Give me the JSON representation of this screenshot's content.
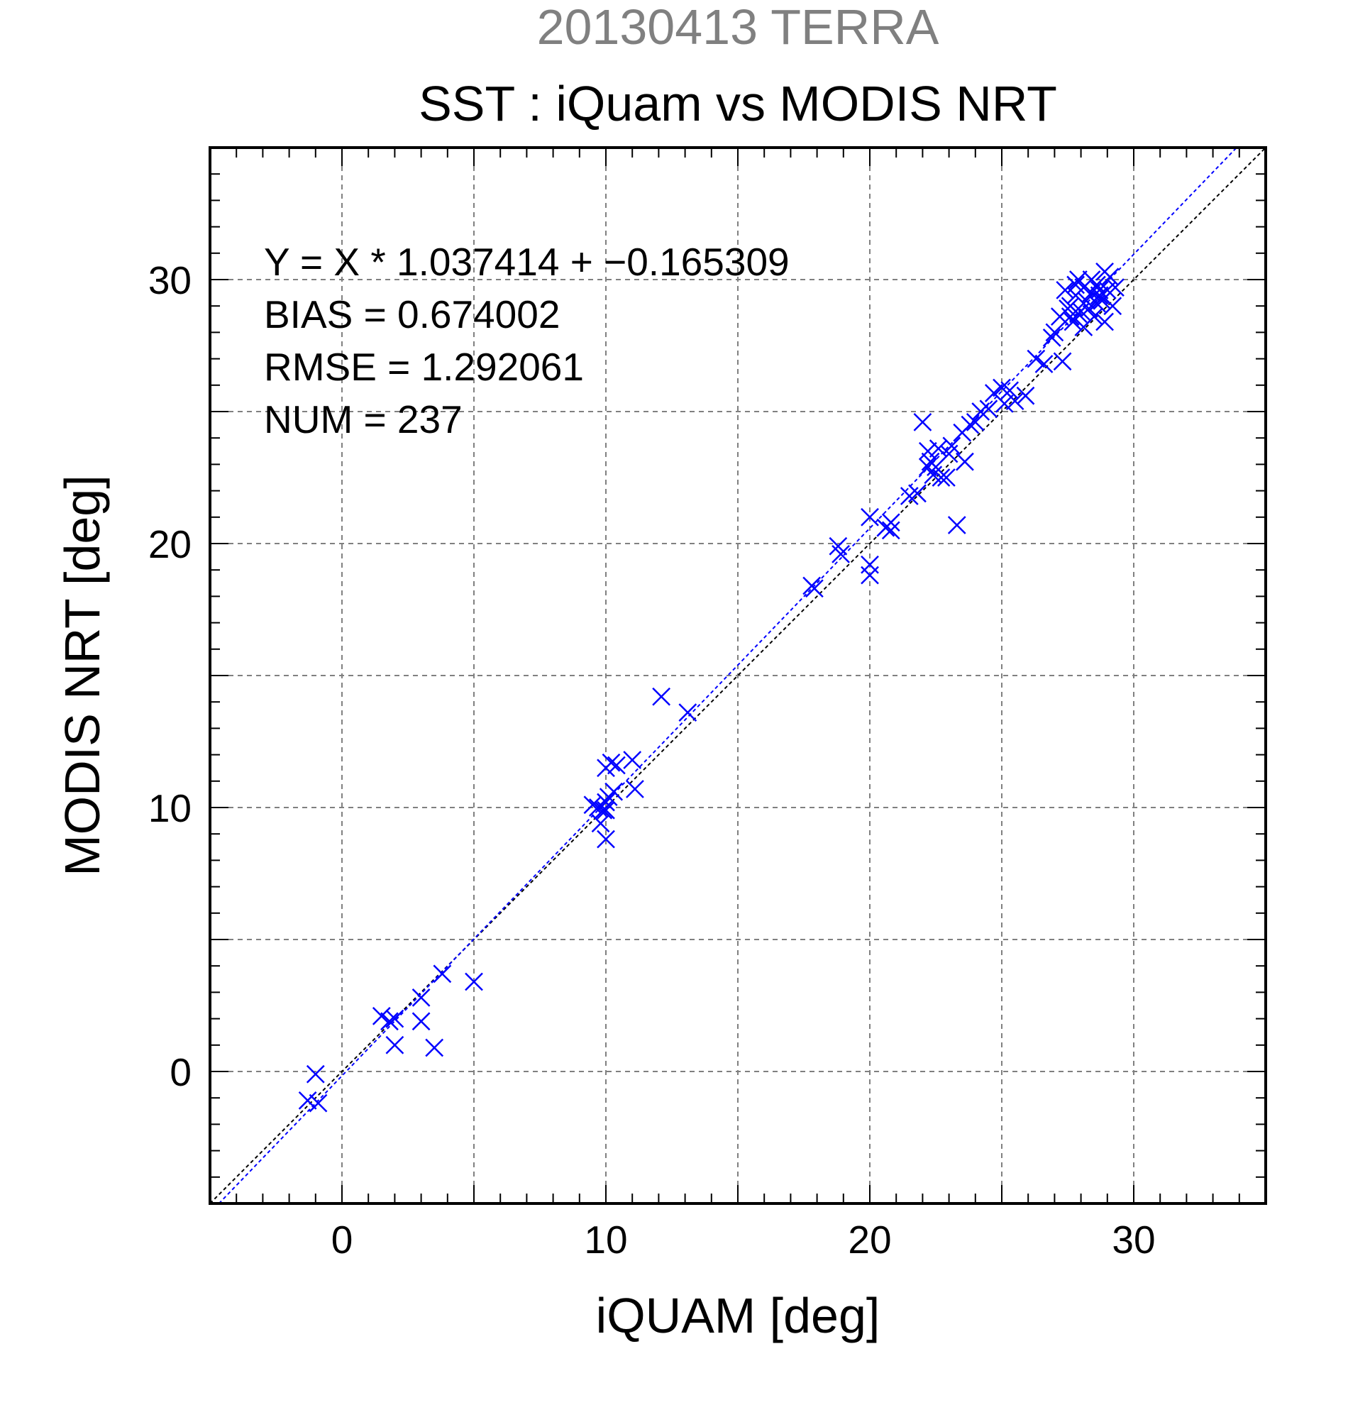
{
  "chart_data": {
    "type": "scatter",
    "supertitle": "20130413 TERRA",
    "title": "SST : iQuam vs MODIS NRT",
    "xlabel": "iQUAM [deg]",
    "ylabel": "MODIS NRT [deg]",
    "xlim": [
      -5,
      35
    ],
    "ylim": [
      -5,
      35
    ],
    "xticks": [
      0,
      10,
      20,
      30
    ],
    "yticks": [
      0,
      10,
      20,
      30
    ],
    "grid": true,
    "annotations": [
      "Y = X * 1.037414 + −0.165309",
      "BIAS = 0.674002",
      "RMSE = 1.292061",
      "NUM = 237"
    ],
    "fit_line": {
      "slope": 1.037414,
      "intercept": -0.165309
    },
    "identity_line": {
      "slope": 1,
      "intercept": 0
    },
    "colors": {
      "points": "#0000ff",
      "fit_line": "#0000ff",
      "identity_line": "#000000",
      "supertitle": "#808080",
      "grid": "#808080"
    },
    "points": [
      [
        -1.3,
        -1.1
      ],
      [
        -1.0,
        -0.1
      ],
      [
        -0.9,
        -1.2
      ],
      [
        1.5,
        2.1
      ],
      [
        1.8,
        1.9
      ],
      [
        2.0,
        1.0
      ],
      [
        2.0,
        2.0
      ],
      [
        3.0,
        2.8
      ],
      [
        3.0,
        1.9
      ],
      [
        3.5,
        0.9
      ],
      [
        3.8,
        3.7
      ],
      [
        5.0,
        3.4
      ],
      [
        9.5,
        10.1
      ],
      [
        9.7,
        10.0
      ],
      [
        9.8,
        9.4
      ],
      [
        9.9,
        9.9
      ],
      [
        10.0,
        8.8
      ],
      [
        10.0,
        10.2
      ],
      [
        10.0,
        11.5
      ],
      [
        10.1,
        10.4
      ],
      [
        10.2,
        11.7
      ],
      [
        10.3,
        10.6
      ],
      [
        10.4,
        11.6
      ],
      [
        10.0,
        9.9
      ],
      [
        11.0,
        11.8
      ],
      [
        11.1,
        10.7
      ],
      [
        12.1,
        14.2
      ],
      [
        13.1,
        13.6
      ],
      [
        17.8,
        18.4
      ],
      [
        17.9,
        18.3
      ],
      [
        18.8,
        19.9
      ],
      [
        18.9,
        19.6
      ],
      [
        20.0,
        21.0
      ],
      [
        20.0,
        18.8
      ],
      [
        20.0,
        19.2
      ],
      [
        20.6,
        20.6
      ],
      [
        20.8,
        20.5
      ],
      [
        20.8,
        20.8
      ],
      [
        21.5,
        21.8
      ],
      [
        21.8,
        21.9
      ],
      [
        22.0,
        24.6
      ],
      [
        22.2,
        23.5
      ],
      [
        22.2,
        22.9
      ],
      [
        22.3,
        23.1
      ],
      [
        22.4,
        22.6
      ],
      [
        22.5,
        22.9
      ],
      [
        22.6,
        23.6
      ],
      [
        22.7,
        22.5
      ],
      [
        22.9,
        22.5
      ],
      [
        23.0,
        23.4
      ],
      [
        23.1,
        23.7
      ],
      [
        23.3,
        20.7
      ],
      [
        23.5,
        24.2
      ],
      [
        23.6,
        23.1
      ],
      [
        23.8,
        24.5
      ],
      [
        24.0,
        24.6
      ],
      [
        24.2,
        25.0
      ],
      [
        24.5,
        25.1
      ],
      [
        24.7,
        25.7
      ],
      [
        25.0,
        25.9
      ],
      [
        25.1,
        25.3
      ],
      [
        25.3,
        25.8
      ],
      [
        25.5,
        25.4
      ],
      [
        25.9,
        25.6
      ],
      [
        26.3,
        27.0
      ],
      [
        26.6,
        26.8
      ],
      [
        26.9,
        27.8
      ],
      [
        27.0,
        28.0
      ],
      [
        27.2,
        28.6
      ],
      [
        27.3,
        26.9
      ],
      [
        27.4,
        29.6
      ],
      [
        27.5,
        28.9
      ],
      [
        27.6,
        29.0
      ],
      [
        27.7,
        28.4
      ],
      [
        27.8,
        29.4
      ],
      [
        27.9,
        30.0
      ],
      [
        28.0,
        28.8
      ],
      [
        28.1,
        28.2
      ],
      [
        28.2,
        29.2
      ],
      [
        28.3,
        28.9
      ],
      [
        28.4,
        29.5
      ],
      [
        28.5,
        28.6
      ],
      [
        28.6,
        29.8
      ],
      [
        28.7,
        29.6
      ],
      [
        28.8,
        29.2
      ],
      [
        28.9,
        30.3
      ],
      [
        29.0,
        29.6
      ],
      [
        29.1,
        30.1
      ],
      [
        29.2,
        29.0
      ],
      [
        28.9,
        28.4
      ],
      [
        28.4,
        30.0
      ],
      [
        28.7,
        29.4
      ],
      [
        27.6,
        28.6
      ],
      [
        28.1,
        29.7
      ],
      [
        27.9,
        28.7
      ],
      [
        29.3,
        29.7
      ],
      [
        27.8,
        29.8
      ],
      [
        28.6,
        29.1
      ]
    ]
  }
}
